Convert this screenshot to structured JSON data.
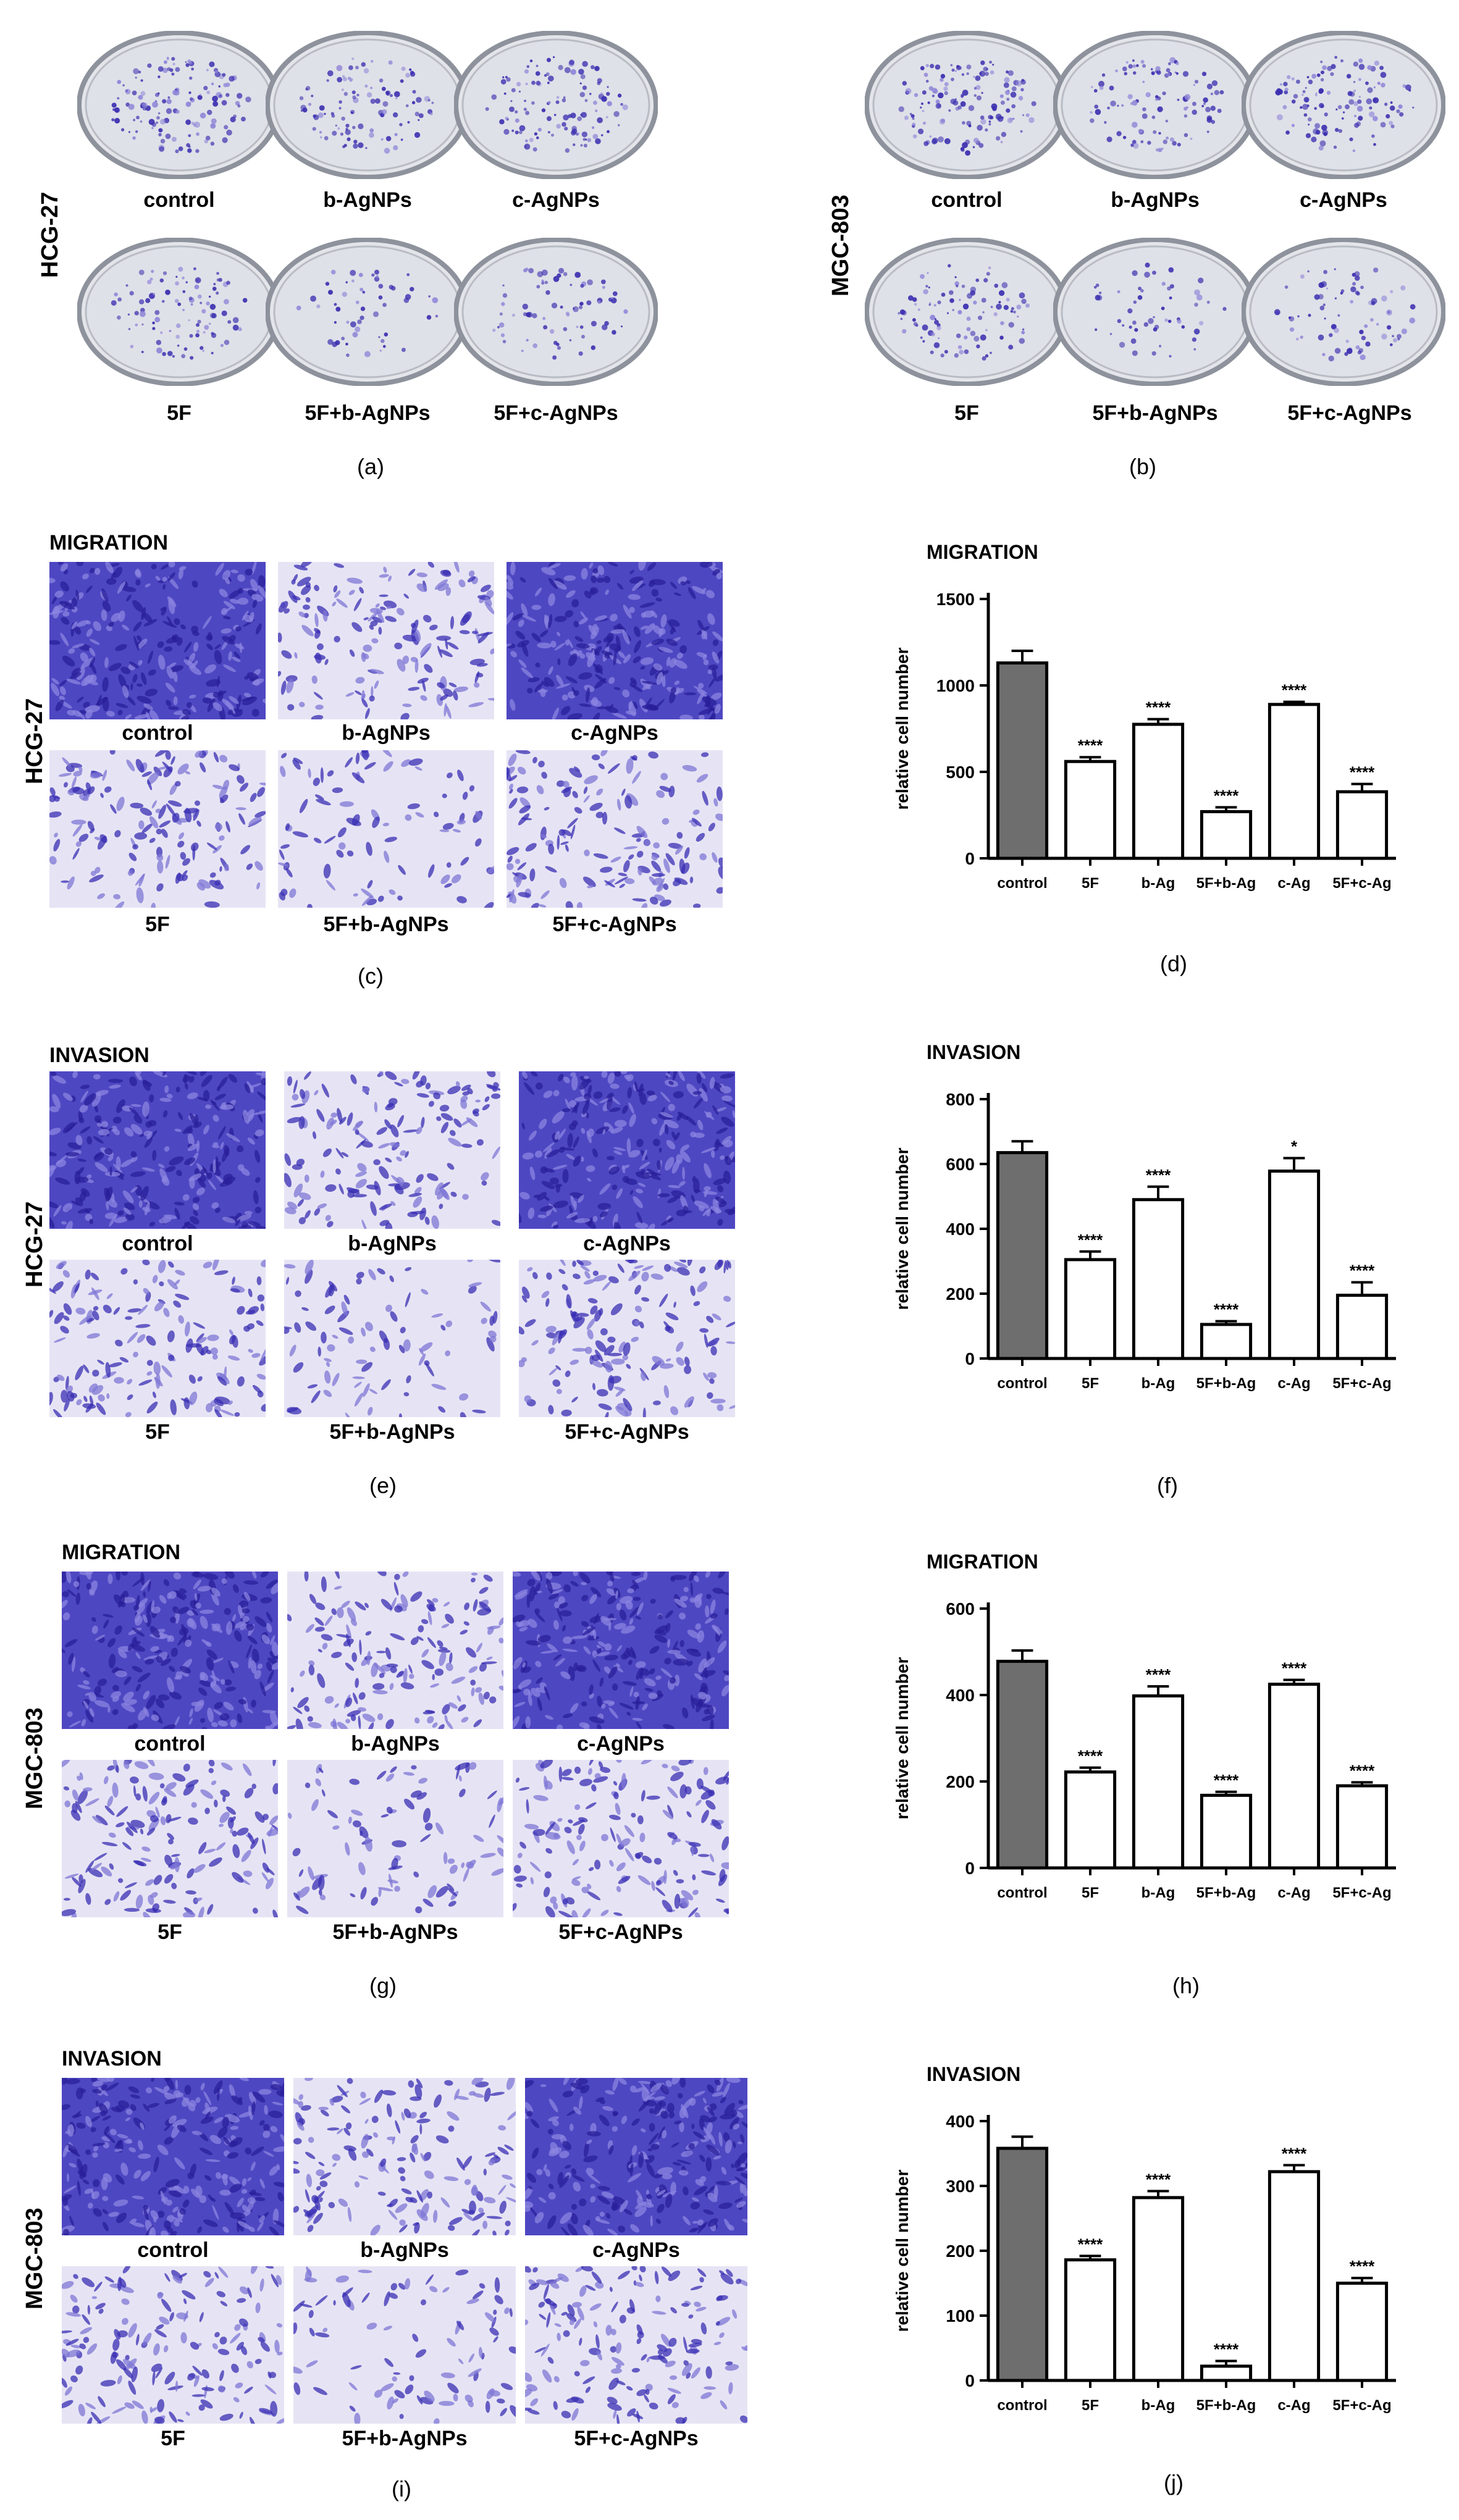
{
  "panel_letters": [
    "(a)",
    "(b)",
    "(c)",
    "(d)",
    "(e)",
    "(f)",
    "(g)",
    "(h)",
    "(i)",
    "(j)"
  ],
  "colony": {
    "a": {
      "cell_line": "HCG-27",
      "top": [
        "control",
        "b-AgNPs",
        "c-AgNPs"
      ],
      "bottom": [
        "5F",
        "5F+b-AgNPs",
        "5F+c-AgNPs"
      ]
    },
    "b": {
      "cell_line": "MGC-803",
      "top": [
        "control",
        "b-AgNPs",
        "c-AgNPs"
      ],
      "bottom": [
        "5F",
        "5F+b-AgNPs",
        "5F+c-AgNPs"
      ]
    }
  },
  "micro_panels": {
    "c": {
      "title": "MIGRATION",
      "cell_line": "HCG-27",
      "top": [
        "control",
        "b-AgNPs",
        "c-AgNPs"
      ],
      "bottom": [
        "5F",
        "5F+b-AgNPs",
        "5F+c-AgNPs"
      ]
    },
    "e": {
      "title": "INVASION",
      "cell_line": "HCG-27",
      "top": [
        "control",
        "b-AgNPs",
        "c-AgNPs"
      ],
      "bottom": [
        "5F",
        "5F+b-AgNPs",
        "5F+c-AgNPs"
      ]
    },
    "g": {
      "title": "MIGRATION",
      "cell_line": "MGC-803",
      "top": [
        "control",
        "b-AgNPs",
        "c-AgNPs"
      ],
      "bottom": [
        "5F",
        "5F+b-AgNPs",
        "5F+c-AgNPs"
      ]
    },
    "i": {
      "title": "INVASION",
      "cell_line": "MGC-803",
      "top": [
        "control",
        "b-AgNPs",
        "c-AgNPs"
      ],
      "bottom": [
        "5F",
        "5F+b-AgNPs",
        "5F+c-AgNPs"
      ]
    }
  },
  "colors": {
    "control_bar": "#6e6e6e",
    "other_bar": "#ffffff",
    "stain": "#3b2fb0",
    "stain_light": "#8e86d8"
  },
  "chart_data": [
    {
      "id": "d",
      "type": "bar",
      "title": "MIGRATION",
      "ylabel": "relative cell number",
      "categories": [
        "control",
        "5F",
        "b-Ag",
        "5F+b-Ag",
        "c-Ag",
        "5F+c-Ag"
      ],
      "values": [
        1130,
        560,
        775,
        270,
        890,
        385
      ],
      "errors": [
        70,
        25,
        30,
        25,
        15,
        45
      ],
      "significance": [
        "",
        "****",
        "****",
        "****",
        "****",
        "****"
      ],
      "yticks": [
        0,
        500,
        1000,
        1500
      ],
      "ylim": [
        0,
        1500
      ]
    },
    {
      "id": "f",
      "type": "bar",
      "title": "INVASION",
      "ylabel": "relative cell number",
      "categories": [
        "control",
        "5F",
        "b-Ag",
        "5F+b-Ag",
        "c-Ag",
        "5F+c-Ag"
      ],
      "values": [
        635,
        305,
        490,
        105,
        578,
        195
      ],
      "errors": [
        35,
        25,
        40,
        10,
        40,
        40
      ],
      "significance": [
        "",
        "****",
        "****",
        "****",
        "*",
        "****"
      ],
      "yticks": [
        0,
        200,
        400,
        600,
        800
      ],
      "ylim": [
        0,
        800
      ]
    },
    {
      "id": "h",
      "type": "bar",
      "title": "MIGRATION",
      "ylabel": "relative cell number",
      "categories": [
        "control",
        "5F",
        "b-Ag",
        "5F+b-Ag",
        "c-Ag",
        "5F+c-Ag"
      ],
      "values": [
        478,
        222,
        398,
        168,
        425,
        190
      ],
      "errors": [
        25,
        10,
        22,
        8,
        10,
        8
      ],
      "significance": [
        "",
        "****",
        "****",
        "****",
        "****",
        "****"
      ],
      "yticks": [
        0,
        200,
        400,
        600
      ],
      "ylim": [
        0,
        600
      ]
    },
    {
      "id": "j",
      "type": "bar",
      "title": "INVASION",
      "ylabel": "relative cell number",
      "categories": [
        "control",
        "5F",
        "b-Ag",
        "5F+b-Ag",
        "c-Ag",
        "5F+c-Ag"
      ],
      "values": [
        358,
        186,
        282,
        22,
        322,
        150
      ],
      "errors": [
        18,
        6,
        10,
        8,
        10,
        8
      ],
      "significance": [
        "",
        "****",
        "****",
        "****",
        "****",
        "****"
      ],
      "yticks": [
        0,
        100,
        200,
        300,
        400
      ],
      "ylim": [
        0,
        400
      ]
    }
  ]
}
